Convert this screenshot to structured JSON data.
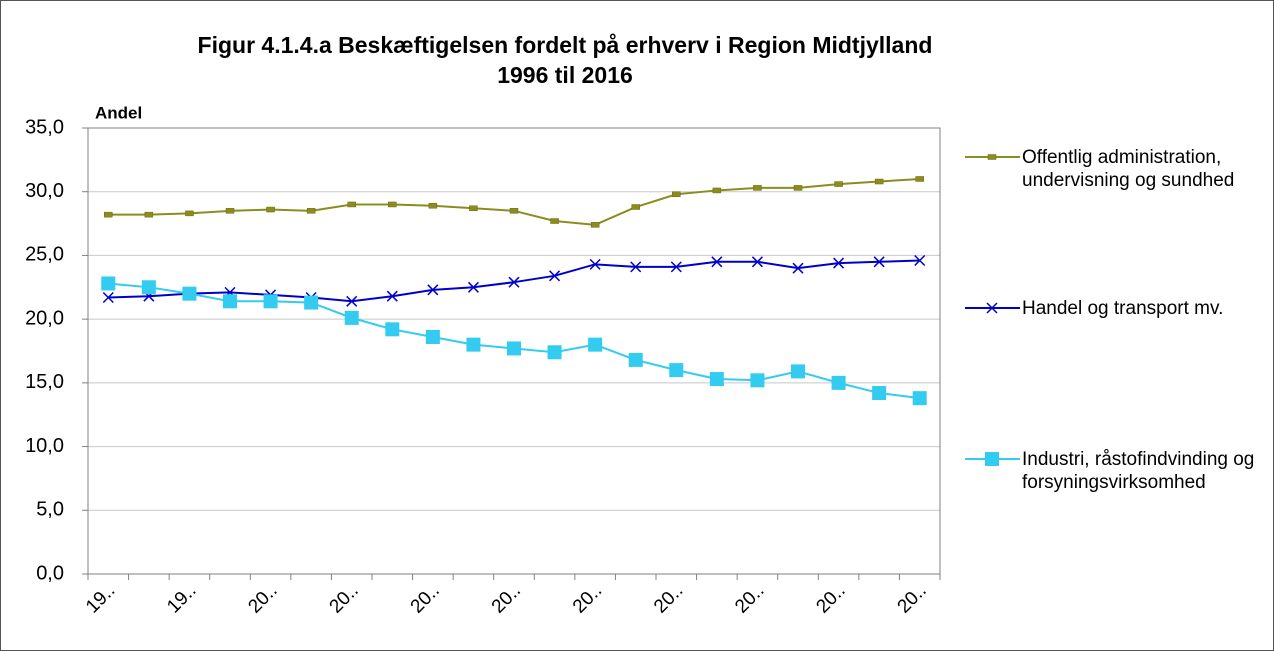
{
  "chart_data": {
    "type": "line",
    "title": "Figur 4.1.4.a Beskæftigelsen fordelt på erhverv i Region Midtjylland",
    "subtitle": "1996 til 2016",
    "y_label": "Andel",
    "categories": [
      "19..",
      null,
      "19..",
      null,
      "20..",
      null,
      "20..",
      null,
      "20..",
      null,
      "20..",
      null,
      "20..",
      null,
      "20..",
      null,
      "20..",
      null,
      "20..",
      null,
      "20.."
    ],
    "series": [
      {
        "name": "Offentlig administration, undervisning og sundhed",
        "color": "#8c8c1f",
        "marker": "dash",
        "values": [
          28.2,
          28.2,
          28.3,
          28.5,
          28.6,
          28.5,
          29.0,
          29.0,
          28.9,
          28.7,
          28.5,
          27.7,
          27.4,
          28.8,
          29.8,
          30.1,
          30.3,
          30.3,
          30.6,
          30.8,
          31.0
        ]
      },
      {
        "name": "Handel og transport mv.",
        "color": "#0000cc",
        "marker": "x",
        "values": [
          21.7,
          21.8,
          22.0,
          22.1,
          21.9,
          21.7,
          21.4,
          21.8,
          22.3,
          22.5,
          22.9,
          23.4,
          24.3,
          24.1,
          24.1,
          24.5,
          24.5,
          24.0,
          24.4,
          24.5,
          24.6
        ]
      },
      {
        "name": "Industri, råstofindvinding og forsyningsvirksomhed",
        "color": "#33ccf0",
        "marker": "square",
        "values": [
          22.8,
          22.5,
          22.0,
          21.4,
          21.4,
          21.3,
          20.1,
          19.2,
          18.6,
          18.0,
          17.7,
          17.4,
          18.0,
          16.8,
          16.0,
          15.3,
          15.2,
          15.9,
          15.0,
          14.2,
          13.8
        ]
      }
    ],
    "ylim": [
      0,
      35
    ],
    "yticks": [
      {
        "value": 0,
        "label": "0,0"
      },
      {
        "value": 5,
        "label": "5,0"
      },
      {
        "value": 10,
        "label": "10,0"
      },
      {
        "value": 15,
        "label": "15,0"
      },
      {
        "value": 20,
        "label": "20,0"
      },
      {
        "value": 25,
        "label": "25,0"
      },
      {
        "value": 30,
        "label": "30,0"
      },
      {
        "value": 35,
        "label": "35,0"
      }
    ],
    "grid": true,
    "legend": "right"
  }
}
